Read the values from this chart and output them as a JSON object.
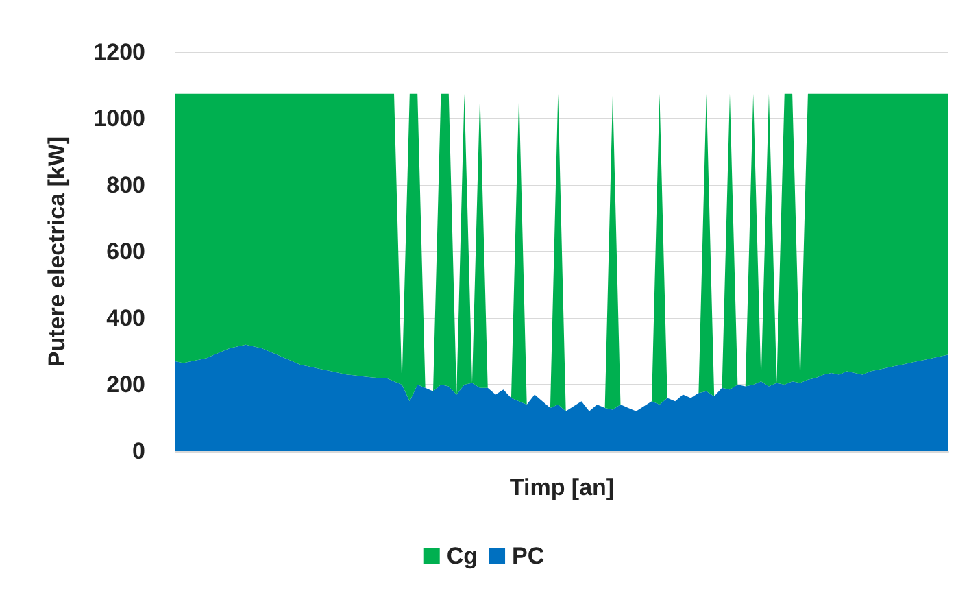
{
  "chart_data": {
    "type": "area",
    "stacked": true,
    "xlabel": "Timp [an]",
    "ylabel": "Putere electrica [kW]",
    "ylim": [
      0,
      1200
    ],
    "yticks": [
      0,
      200,
      400,
      600,
      800,
      1000,
      1200
    ],
    "grid": "y",
    "legend": "bottom",
    "tick_labels": "y",
    "categories": [
      null,
      null,
      null,
      null,
      null,
      null,
      null,
      null,
      null,
      null,
      null,
      null,
      null,
      null,
      null,
      null,
      null,
      null,
      null,
      null,
      null,
      null,
      null,
      null,
      null,
      null,
      null,
      null,
      null,
      null,
      null,
      null,
      null,
      null,
      null,
      null,
      null,
      null,
      null,
      null,
      null,
      null,
      null,
      null,
      null,
      null,
      null,
      null,
      null,
      null,
      null,
      null,
      null,
      null,
      null,
      null,
      null,
      null,
      null,
      null,
      null,
      null,
      null,
      null,
      null,
      null,
      null,
      null,
      null,
      null,
      null,
      null,
      null,
      null,
      null,
      null,
      null,
      null,
      null,
      null,
      null,
      null,
      null,
      null,
      null,
      null,
      null,
      null,
      null,
      null,
      null,
      null,
      null,
      null,
      null,
      null,
      null,
      null,
      null,
      null
    ],
    "series": [
      {
        "name": "PC",
        "color": "#0070c0",
        "values": [
          270,
          265,
          270,
          275,
          280,
          290,
          300,
          310,
          315,
          320,
          315,
          310,
          300,
          290,
          280,
          270,
          260,
          255,
          250,
          245,
          240,
          235,
          230,
          228,
          225,
          222,
          220,
          220,
          210,
          200,
          150,
          200,
          190,
          180,
          200,
          195,
          170,
          200,
          205,
          190,
          190,
          170,
          185,
          160,
          150,
          140,
          170,
          150,
          130,
          140,
          120,
          135,
          150,
          120,
          140,
          130,
          125,
          140,
          130,
          120,
          135,
          150,
          140,
          160,
          150,
          170,
          160,
          175,
          180,
          165,
          190,
          185,
          200,
          195,
          200,
          210,
          195,
          205,
          200,
          210,
          205,
          215,
          220,
          230,
          235,
          230,
          240,
          235,
          230,
          240,
          245,
          250,
          255,
          260,
          265,
          270,
          275,
          280,
          285,
          290
        ]
      },
      {
        "name": "Cg",
        "color": "#00b050",
        "values": [
          805,
          810,
          805,
          800,
          795,
          785,
          775,
          765,
          760,
          755,
          760,
          765,
          775,
          785,
          795,
          805,
          815,
          820,
          825,
          830,
          835,
          840,
          845,
          847,
          850,
          853,
          855,
          855,
          865,
          0,
          925,
          875,
          0,
          0,
          875,
          880,
          0,
          875,
          0,
          885,
          0,
          0,
          0,
          0,
          925,
          0,
          0,
          0,
          0,
          935,
          0,
          0,
          0,
          0,
          0,
          0,
          950,
          0,
          0,
          0,
          0,
          0,
          935,
          0,
          0,
          0,
          0,
          0,
          895,
          0,
          0,
          890,
          0,
          0,
          875,
          0,
          880,
          0,
          875,
          865,
          0,
          860,
          855,
          845,
          840,
          845,
          835,
          840,
          845,
          835,
          830,
          825,
          820,
          815,
          810,
          805,
          800,
          795,
          790,
          785
        ]
      }
    ]
  }
}
